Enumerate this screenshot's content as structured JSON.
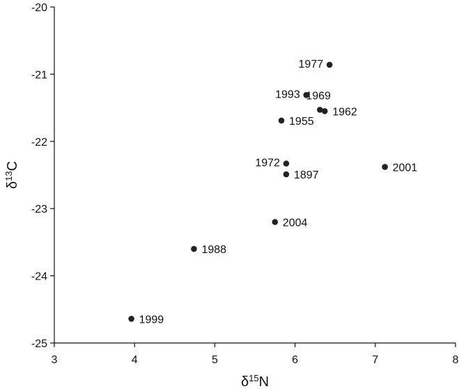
{
  "chart_data": {
    "type": "scatter",
    "title": "",
    "xlabel": "δ15N",
    "ylabel": "δ13C",
    "x_axis": {
      "base": "δ",
      "sup": "15",
      "tail": "N"
    },
    "y_axis": {
      "base": "δ",
      "sup": "13",
      "tail": "C"
    },
    "xlim": [
      3,
      8
    ],
    "ylim": [
      -25,
      -20
    ],
    "xticks": [
      3,
      4,
      5,
      6,
      7,
      8
    ],
    "yticks": [
      -25,
      -24,
      -23,
      -22,
      -21,
      -20
    ],
    "grid": false,
    "legend": "none",
    "marker_color": "#222222",
    "points": [
      {
        "label": "1977",
        "x": 6.43,
        "y": -20.86,
        "label_side": "left"
      },
      {
        "label": "1993",
        "x": 6.14,
        "y": -21.31,
        "label_side": "left"
      },
      {
        "label": "1969",
        "x": 6.31,
        "y": -21.53,
        "label_side": "above-right"
      },
      {
        "label": "1962",
        "x": 6.37,
        "y": -21.55,
        "label_side": "right"
      },
      {
        "label": "1955",
        "x": 5.83,
        "y": -21.69,
        "label_side": "right"
      },
      {
        "label": "1972",
        "x": 5.89,
        "y": -22.33,
        "label_side": "left"
      },
      {
        "label": "1897",
        "x": 5.89,
        "y": -22.49,
        "label_side": "right"
      },
      {
        "label": "2001",
        "x": 7.12,
        "y": -22.38,
        "label_side": "right"
      },
      {
        "label": "2004",
        "x": 5.75,
        "y": -23.2,
        "label_side": "right"
      },
      {
        "label": "1988",
        "x": 4.74,
        "y": -23.6,
        "label_side": "right"
      },
      {
        "label": "1999",
        "x": 3.96,
        "y": -24.64,
        "label_side": "right"
      }
    ]
  }
}
